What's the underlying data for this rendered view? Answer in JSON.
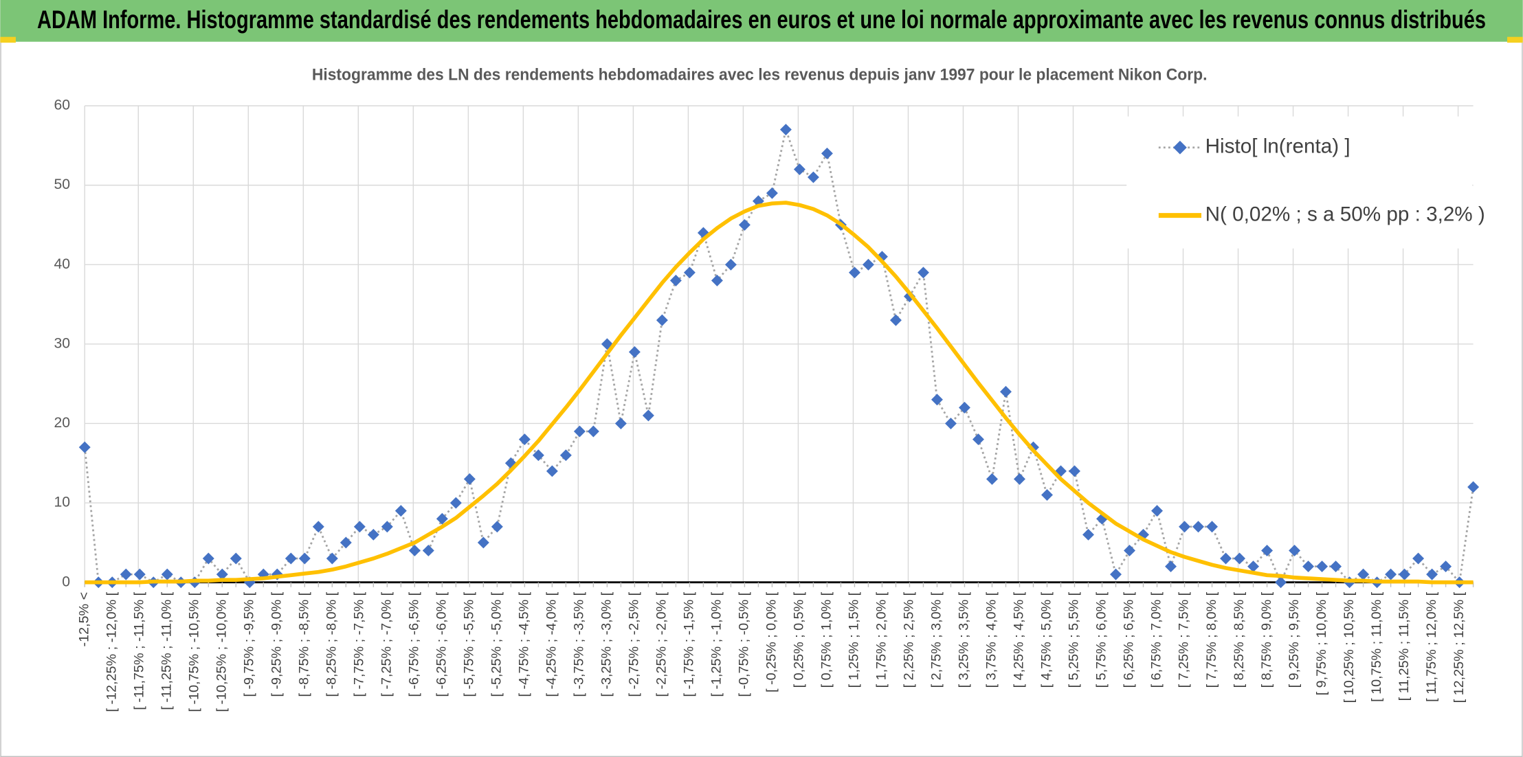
{
  "title": "ADAM Informe. Histogramme standardisé des rendements hebdomadaires en euros et une loi normale approximante avec les revenus connus distribués",
  "chart_data": {
    "type": "line",
    "title": "Histogramme des LN des rendements hebdomadaires avec les revenus depuis janv 1997 pour le placement Nikon Corp.",
    "categories": [
      "-12,5% <",
      null,
      "[ -12,25% ; -12,0% [",
      null,
      "[ -11,75% ; -11,5% [",
      null,
      "[ -11,25% ; -11,0% [",
      null,
      "[ -10,75% ; -10,5% [",
      null,
      "[ -10,25% ; -10,0% [",
      null,
      "[ -9,75% ; -9,5% [",
      null,
      "[ -9,25% ; -9,0% [",
      null,
      "[ -8,75% ; -8,5% [",
      null,
      "[ -8,25% ; -8,0% [",
      null,
      "[ -7,75% ; -7,5% [",
      null,
      "[ -7,25% ; -7,0% [",
      null,
      "[ -6,75% ; -6,5% [",
      null,
      "[ -6,25% ; -6,0% [",
      null,
      "[ -5,75% ; -5,5% [",
      null,
      "[ -5,25% ; -5,0% [",
      null,
      "[ -4,75% ; -4,5% [",
      null,
      "[ -4,25% ; -4,0% [",
      null,
      "[ -3,75% ; -3,5% [",
      null,
      "[ -3,25% ; -3,0% [",
      null,
      "[ -2,75% ; -2,5% [",
      null,
      "[ -2,25% ; -2,0% [",
      null,
      "[ -1,75% ; -1,5% [",
      null,
      "[ -1,25% ; -1,0% [",
      null,
      "[ -0,75% ; -0,5% [",
      null,
      "[ -0,25% ; 0,0% [",
      null,
      "[ 0,25% ; 0,5% [",
      null,
      "[ 0,75% ; 1,0% [",
      null,
      "[ 1,25% ; 1,5% [",
      null,
      "[ 1,75% ; 2,0% [",
      null,
      "[ 2,25% ; 2,5% [",
      null,
      "[ 2,75% ; 3,0% [",
      null,
      "[ 3,25% ; 3,5% [",
      null,
      "[ 3,75% ; 4,0% [",
      null,
      "[ 4,25% ; 4,5% [",
      null,
      "[ 4,75% ; 5,0% [",
      null,
      "[ 5,25% ; 5,5% [",
      null,
      "[ 5,75% ; 6,0% [",
      null,
      "[ 6,25% ; 6,5% [",
      null,
      "[ 6,75% ; 7,0% [",
      null,
      "[ 7,25% ; 7,5% [",
      null,
      "[ 7,75% ; 8,0% [",
      null,
      "[ 8,25% ; 8,5% [",
      null,
      "[ 8,75% ; 9,0% [",
      null,
      "[ 9,25% ; 9,5% [",
      null,
      "[ 9,75% ; 10,0% [",
      null,
      "[ 10,25% ; 10,5% [",
      null,
      "[ 10,75% ; 11,0% [",
      null,
      "[ 11,25% ; 11,5% [",
      null,
      "[ 11,75% ; 12,0% [",
      null,
      "[ 12,25% ; 12,5% [",
      null
    ],
    "series": [
      {
        "name": "Histo[ ln(renta) ]",
        "color": "#4472c4",
        "line_color": "#a5a5a5",
        "line_style": "dotted",
        "marker": "diamond",
        "values": [
          17,
          0,
          0,
          1,
          1,
          0,
          1,
          0,
          0,
          3,
          1,
          3,
          0,
          1,
          1,
          3,
          3,
          7,
          3,
          5,
          7,
          6,
          7,
          9,
          4,
          4,
          8,
          10,
          13,
          5,
          7,
          15,
          18,
          16,
          14,
          16,
          19,
          19,
          30,
          20,
          29,
          21,
          33,
          38,
          39,
          44,
          38,
          40,
          45,
          48,
          49,
          57,
          52,
          51,
          54,
          45,
          39,
          40,
          41,
          33,
          36,
          39,
          23,
          20,
          22,
          18,
          13,
          24,
          13,
          17,
          11,
          14,
          14,
          6,
          8,
          1,
          4,
          6,
          9,
          2,
          7,
          7,
          7,
          3,
          3,
          2,
          4,
          0,
          4,
          2,
          2,
          2,
          0,
          1,
          0,
          1,
          1,
          3,
          1,
          2,
          0,
          12
        ]
      },
      {
        "name": "N( 0,02% ; s a 50% pp : 3,2% )",
        "color": "#ffc000",
        "line_color": "#ffc000",
        "line_style": "solid",
        "marker": null,
        "values": [
          0,
          0,
          0,
          0,
          0,
          0.1,
          0.1,
          0.1,
          0.2,
          0.2,
          0.3,
          0.3,
          0.4,
          0.5,
          0.7,
          0.9,
          1.1,
          1.3,
          1.6,
          2.0,
          2.5,
          3.0,
          3.6,
          4.3,
          5.0,
          6.0,
          7.0,
          8.1,
          9.5,
          10.9,
          12.4,
          14.1,
          15.9,
          17.8,
          19.9,
          22.0,
          24.2,
          26.5,
          28.8,
          31.1,
          33.3,
          35.5,
          37.7,
          39.7,
          41.5,
          43.2,
          44.6,
          45.8,
          46.7,
          47.4,
          47.7,
          47.8,
          47.5,
          47.0,
          46.2,
          45.1,
          43.7,
          42.2,
          40.4,
          38.5,
          36.4,
          34.2,
          32.0,
          29.7,
          27.4,
          25.1,
          22.9,
          20.7,
          18.6,
          16.6,
          14.8,
          13.0,
          11.5,
          10.0,
          8.7,
          7.4,
          6.4,
          5.4,
          4.6,
          3.8,
          3.2,
          2.7,
          2.2,
          1.8,
          1.5,
          1.2,
          0.9,
          0.8,
          0.6,
          0.5,
          0.4,
          0.3,
          0.2,
          0.2,
          0.1,
          0.1,
          0.1,
          0.1,
          0,
          0,
          0,
          0
        ]
      }
    ],
    "ylim": [
      0,
      60
    ],
    "yticks": [
      0,
      10,
      20,
      30,
      40,
      50,
      60
    ],
    "grid": true,
    "legend": "upper right"
  }
}
